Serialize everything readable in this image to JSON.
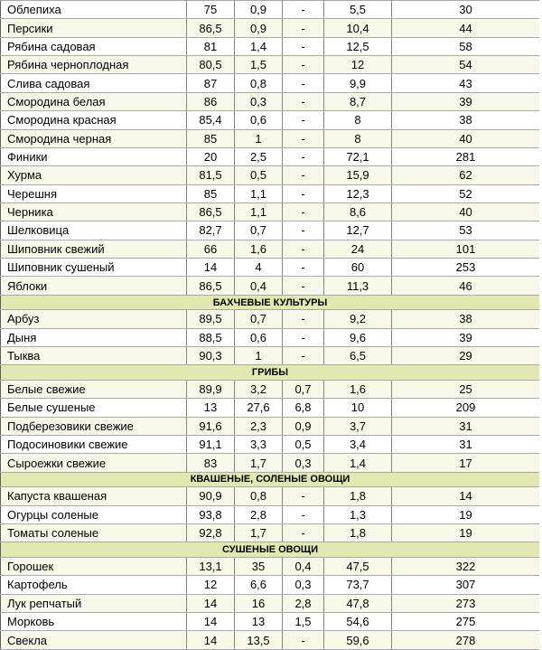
{
  "colors": {
    "row_white": "#ffffff",
    "row_cream": "#f8f8e9",
    "section_bg": "#e1e9b0",
    "border_h": "#a8a8a8",
    "border_v": "#858585"
  },
  "table": {
    "sections": [
      {
        "header": null,
        "rows": [
          {
            "name": "Облепиха",
            "values": [
              "75",
              "0,9",
              "-",
              "5,5",
              "30"
            ]
          },
          {
            "name": "Персики",
            "values": [
              "86,5",
              "0,9",
              "-",
              "10,4",
              "44"
            ]
          },
          {
            "name": "Рябина садовая",
            "values": [
              "81",
              "1,4",
              "-",
              "12,5",
              "58"
            ]
          },
          {
            "name": "Рябина черноплодная",
            "values": [
              "80,5",
              "1,5",
              "-",
              "12",
              "54"
            ]
          },
          {
            "name": "Слива садовая",
            "values": [
              "87",
              "0,8",
              "-",
              "9,9",
              "43"
            ]
          },
          {
            "name": "Смородина белая",
            "values": [
              "86",
              "0,3",
              "-",
              "8,7",
              "39"
            ]
          },
          {
            "name": "Смородина красная",
            "values": [
              "85,4",
              "0,6",
              "-",
              "8",
              "38"
            ]
          },
          {
            "name": "Смородина черная",
            "values": [
              "85",
              "1",
              "-",
              "8",
              "40"
            ]
          },
          {
            "name": "Финики",
            "values": [
              "20",
              "2,5",
              "-",
              "72,1",
              "281"
            ]
          },
          {
            "name": "Хурма",
            "values": [
              "81,5",
              "0,5",
              "-",
              "15,9",
              "62"
            ]
          },
          {
            "name": "Черешня",
            "values": [
              "85",
              "1,1",
              "-",
              "12,3",
              "52"
            ]
          },
          {
            "name": "Черника",
            "values": [
              "86,5",
              "1,1",
              "-",
              "8,6",
              "40"
            ]
          },
          {
            "name": "Шелковица",
            "values": [
              "82,7",
              "0,7",
              "-",
              "12,7",
              "53"
            ]
          },
          {
            "name": "Шиповник свежий",
            "values": [
              "66",
              "1,6",
              "-",
              "24",
              "101"
            ]
          },
          {
            "name": "Шиповник сушеный",
            "values": [
              "14",
              "4",
              "-",
              "60",
              "253"
            ]
          },
          {
            "name": "Яблоки",
            "values": [
              "86,5",
              "0,4",
              "-",
              "11,3",
              "46"
            ]
          }
        ]
      },
      {
        "header": "БАХЧЕВЫЕ КУЛЬТУРЫ",
        "rows": [
          {
            "name": "Арбуз",
            "values": [
              "89,5",
              "0,7",
              "-",
              "9,2",
              "38"
            ]
          },
          {
            "name": "Дыня",
            "values": [
              "88,5",
              "0,6",
              "-",
              "9,6",
              "39"
            ]
          },
          {
            "name": "Тыква",
            "values": [
              "90,3",
              "1",
              "-",
              "6,5",
              "29"
            ]
          }
        ]
      },
      {
        "header": "ГРИБЫ",
        "rows": [
          {
            "name": "Белые свежие",
            "values": [
              "89,9",
              "3,2",
              "0,7",
              "1,6",
              "25"
            ]
          },
          {
            "name": "Белые сушеные",
            "values": [
              "13",
              "27,6",
              "6,8",
              "10",
              "209"
            ]
          },
          {
            "name": "Подберезовики свежие",
            "values": [
              "91,6",
              "2,3",
              "0,9",
              "3,7",
              "31"
            ]
          },
          {
            "name": "Подосиновики свежие",
            "values": [
              "91,1",
              "3,3",
              "0,5",
              "3,4",
              "31"
            ]
          },
          {
            "name": "Сыроежки свежие",
            "values": [
              "83",
              "1,7",
              "0,3",
              "1,4",
              "17"
            ]
          }
        ]
      },
      {
        "header": "КВАШЕНЫЕ, СОЛЕНЫЕ ОВОЩИ",
        "rows": [
          {
            "name": "Капуста квашеная",
            "values": [
              "90,9",
              "0,8",
              "-",
              "1,8",
              "14"
            ]
          },
          {
            "name": "Огурцы соленые",
            "values": [
              "93,8",
              "2,8",
              "-",
              "1,3",
              "19"
            ]
          },
          {
            "name": "Томаты соленые",
            "values": [
              "92,8",
              "1,7",
              "-",
              "1,8",
              "19"
            ]
          }
        ]
      },
      {
        "header": "СУШЕНЫЕ ОВОЩИ",
        "rows": [
          {
            "name": "Горошек",
            "values": [
              "13,1",
              "35",
              "0,4",
              "47,5",
              "322"
            ]
          },
          {
            "name": "Картофель",
            "values": [
              "12",
              "6,6",
              "0,3",
              "73,7",
              "307"
            ]
          },
          {
            "name": "Лук репчатый",
            "values": [
              "14",
              "16",
              "2,8",
              "47,8",
              "273"
            ]
          },
          {
            "name": "Морковь",
            "values": [
              "14",
              "13",
              "1,5",
              "54,6",
              "275"
            ]
          },
          {
            "name": "Свекла",
            "values": [
              "14",
              "13,5",
              "-",
              "59,6",
              "278"
            ]
          }
        ]
      }
    ]
  }
}
